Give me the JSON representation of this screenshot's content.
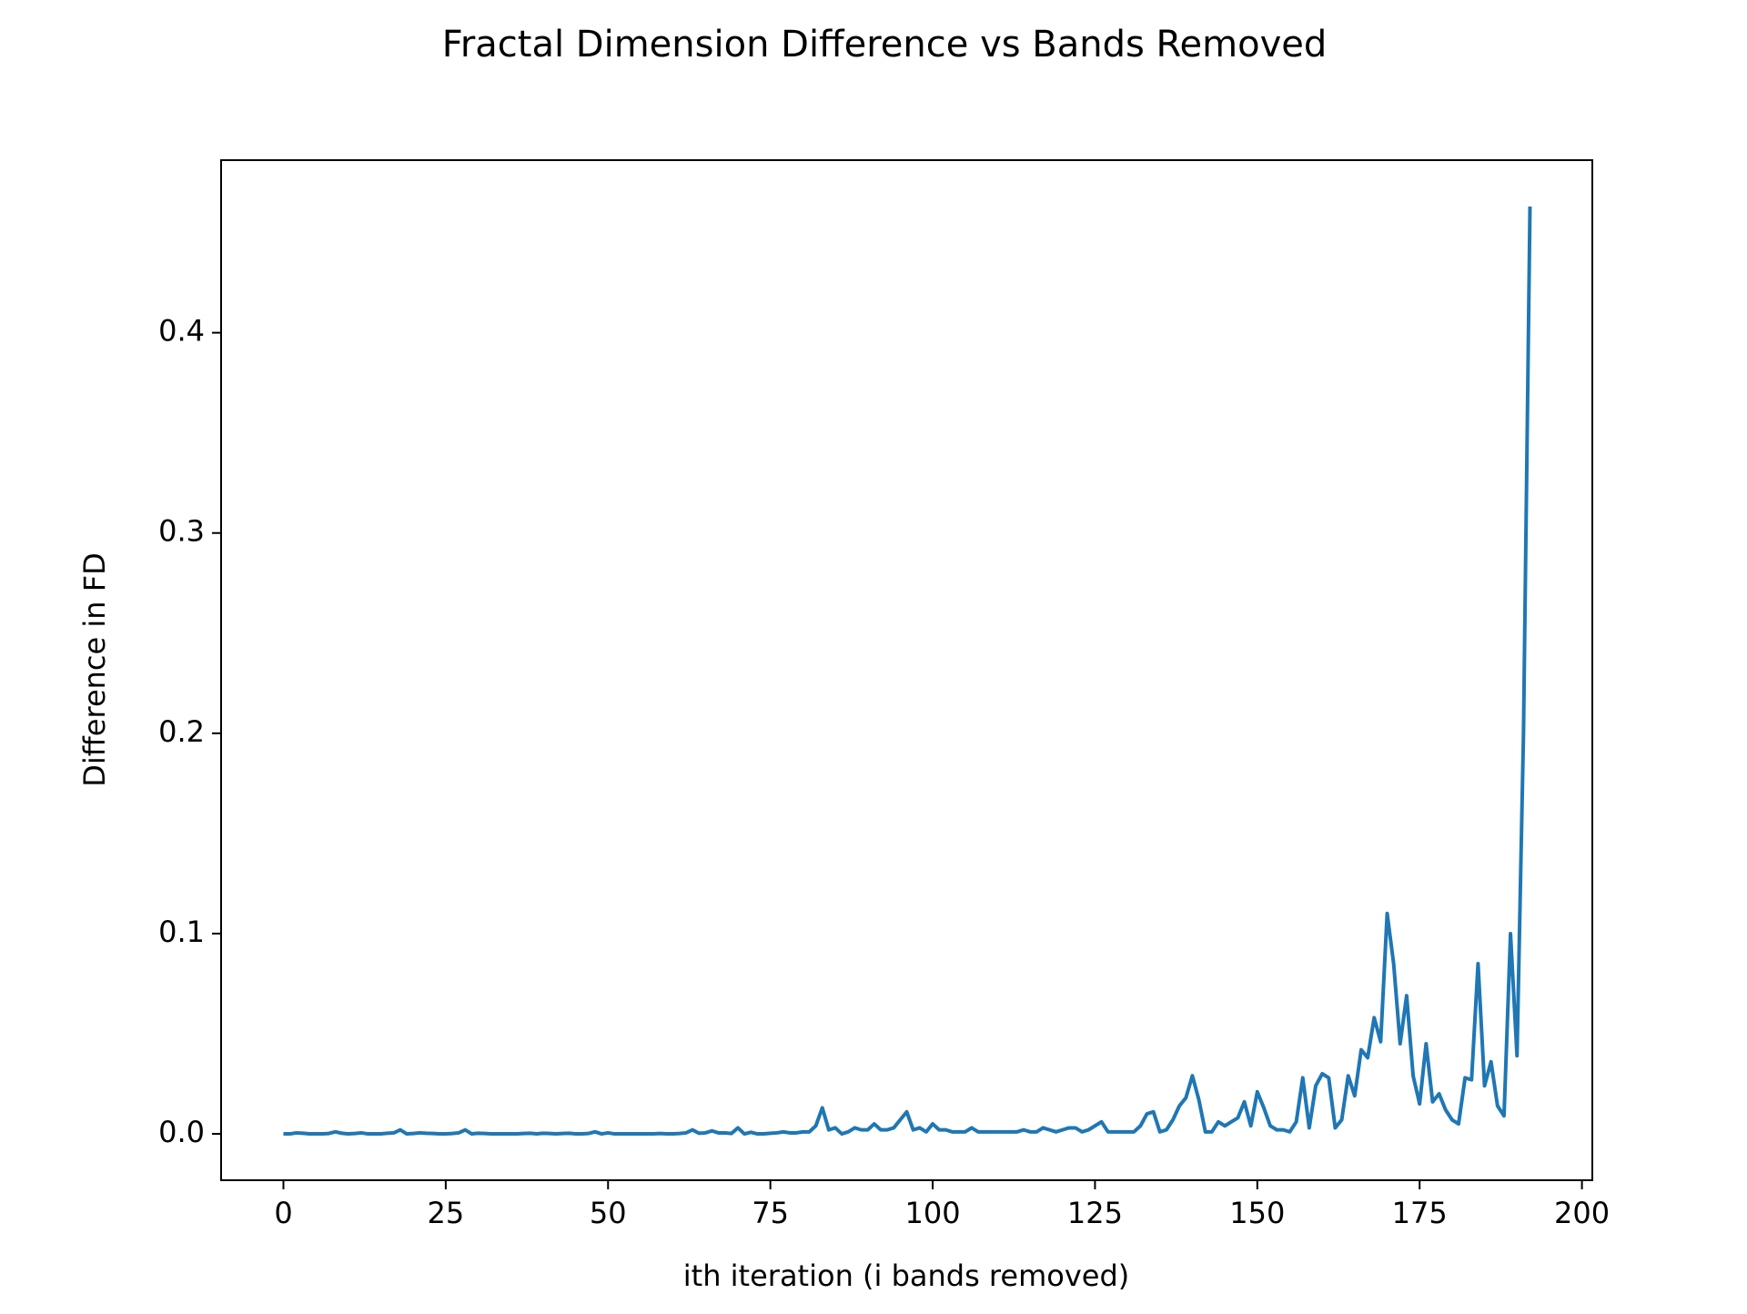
{
  "chart_data": {
    "type": "line",
    "title": "Fractal Dimension Difference vs Bands Removed",
    "xlabel": "ith iteration (i bands removed)",
    "ylabel": "Difference in FD",
    "xlim": [
      -9.6,
      201.6
    ],
    "ylim": [
      -0.02315,
      0.48615
    ],
    "xticks": [
      0,
      25,
      50,
      75,
      100,
      125,
      150,
      175,
      200
    ],
    "yticks": [
      {
        "value": 0,
        "label": "0.0"
      },
      0.1,
      0.2,
      0.3,
      0.4
    ],
    "grid": false,
    "series": [
      {
        "color": "#1f77b4",
        "x": [
          0,
          1,
          2,
          3,
          4,
          5,
          6,
          7,
          8,
          9,
          10,
          11,
          12,
          13,
          14,
          15,
          16,
          17,
          18,
          19,
          20,
          21,
          22,
          23,
          24,
          25,
          26,
          27,
          28,
          29,
          30,
          31,
          32,
          33,
          34,
          35,
          36,
          37,
          38,
          39,
          40,
          41,
          42,
          43,
          44,
          45,
          46,
          47,
          48,
          49,
          50,
          51,
          52,
          53,
          54,
          55,
          56,
          57,
          58,
          59,
          60,
          61,
          62,
          63,
          64,
          65,
          66,
          67,
          68,
          69,
          70,
          71,
          72,
          73,
          74,
          75,
          76,
          77,
          78,
          79,
          80,
          81,
          82,
          83,
          84,
          85,
          86,
          87,
          88,
          89,
          90,
          91,
          92,
          93,
          94,
          95,
          96,
          97,
          98,
          99,
          100,
          101,
          102,
          103,
          104,
          105,
          106,
          107,
          108,
          109,
          110,
          111,
          112,
          113,
          114,
          115,
          116,
          117,
          118,
          119,
          120,
          121,
          122,
          123,
          124,
          125,
          126,
          127,
          128,
          129,
          130,
          131,
          132,
          133,
          134,
          135,
          136,
          137,
          138,
          139,
          140,
          141,
          142,
          143,
          144,
          145,
          146,
          147,
          148,
          149,
          150,
          151,
          152,
          153,
          154,
          155,
          156,
          157,
          158,
          159,
          160,
          161,
          162,
          163,
          164,
          165,
          166,
          167,
          168,
          169,
          170,
          171,
          172,
          173,
          174,
          175,
          176,
          177,
          178,
          179,
          180,
          181,
          182,
          183,
          184,
          185,
          186,
          187,
          188,
          189,
          190,
          191,
          192
        ],
        "values": [
          0,
          0,
          0.0005,
          0.0003,
          0,
          0,
          0,
          0.0002,
          0.001,
          0.0003,
          0,
          0.0002,
          0.0005,
          0,
          0,
          0,
          0.0003,
          0.0005,
          0.002,
          0,
          0.0002,
          0.0005,
          0.0003,
          0.0002,
          0,
          0,
          0.0002,
          0.0005,
          0.002,
          0,
          0.0003,
          0.0002,
          0,
          0,
          0,
          0,
          0,
          0.0002,
          0.0003,
          0,
          0.0003,
          0.0002,
          0,
          0.0002,
          0.0003,
          0,
          0,
          0.0002,
          0.001,
          0,
          0.0005,
          0,
          0,
          0,
          0,
          0,
          0,
          0,
          0.0002,
          0,
          0,
          0.0002,
          0.0005,
          0.002,
          0.0003,
          0.0005,
          0.0015,
          0.0005,
          0.0005,
          0.0002,
          0.003,
          0,
          0.0008,
          0,
          0,
          0.0003,
          0.0005,
          0.001,
          0.0005,
          0.0005,
          0.001,
          0.001,
          0.004,
          0.013,
          0.002,
          0.003,
          0,
          0.001,
          0.003,
          0.002,
          0.002,
          0.005,
          0.002,
          0.002,
          0.003,
          0.007,
          0.011,
          0.002,
          0.003,
          0.001,
          0.005,
          0.002,
          0.002,
          0.001,
          0.001,
          0.001,
          0.003,
          0.001,
          0.001,
          0.001,
          0.001,
          0.001,
          0.001,
          0.001,
          0.002,
          0.001,
          0.001,
          0.003,
          0.002,
          0.001,
          0.002,
          0.003,
          0.003,
          0.001,
          0.002,
          0.004,
          0.006,
          0.001,
          0.001,
          0.001,
          0.001,
          0.001,
          0.004,
          0.01,
          0.011,
          0.001,
          0.002,
          0.007,
          0.014,
          0.018,
          0.029,
          0.017,
          0.001,
          0.001,
          0.006,
          0.004,
          0.006,
          0.008,
          0.016,
          0.004,
          0.021,
          0.013,
          0.004,
          0.002,
          0.002,
          0.001,
          0.006,
          0.028,
          0.003,
          0.024,
          0.03,
          0.028,
          0.003,
          0.007,
          0.029,
          0.019,
          0.042,
          0.038,
          0.058,
          0.046,
          0.11,
          0.085,
          0.045,
          0.069,
          0.029,
          0.015,
          0.045,
          0.016,
          0.02,
          0.012,
          0.007,
          0.005,
          0.028,
          0.027,
          0.085,
          0.024,
          0.036,
          0.014,
          0.009,
          0.1,
          0.039,
          0.2,
          0.463
        ]
      }
    ]
  }
}
